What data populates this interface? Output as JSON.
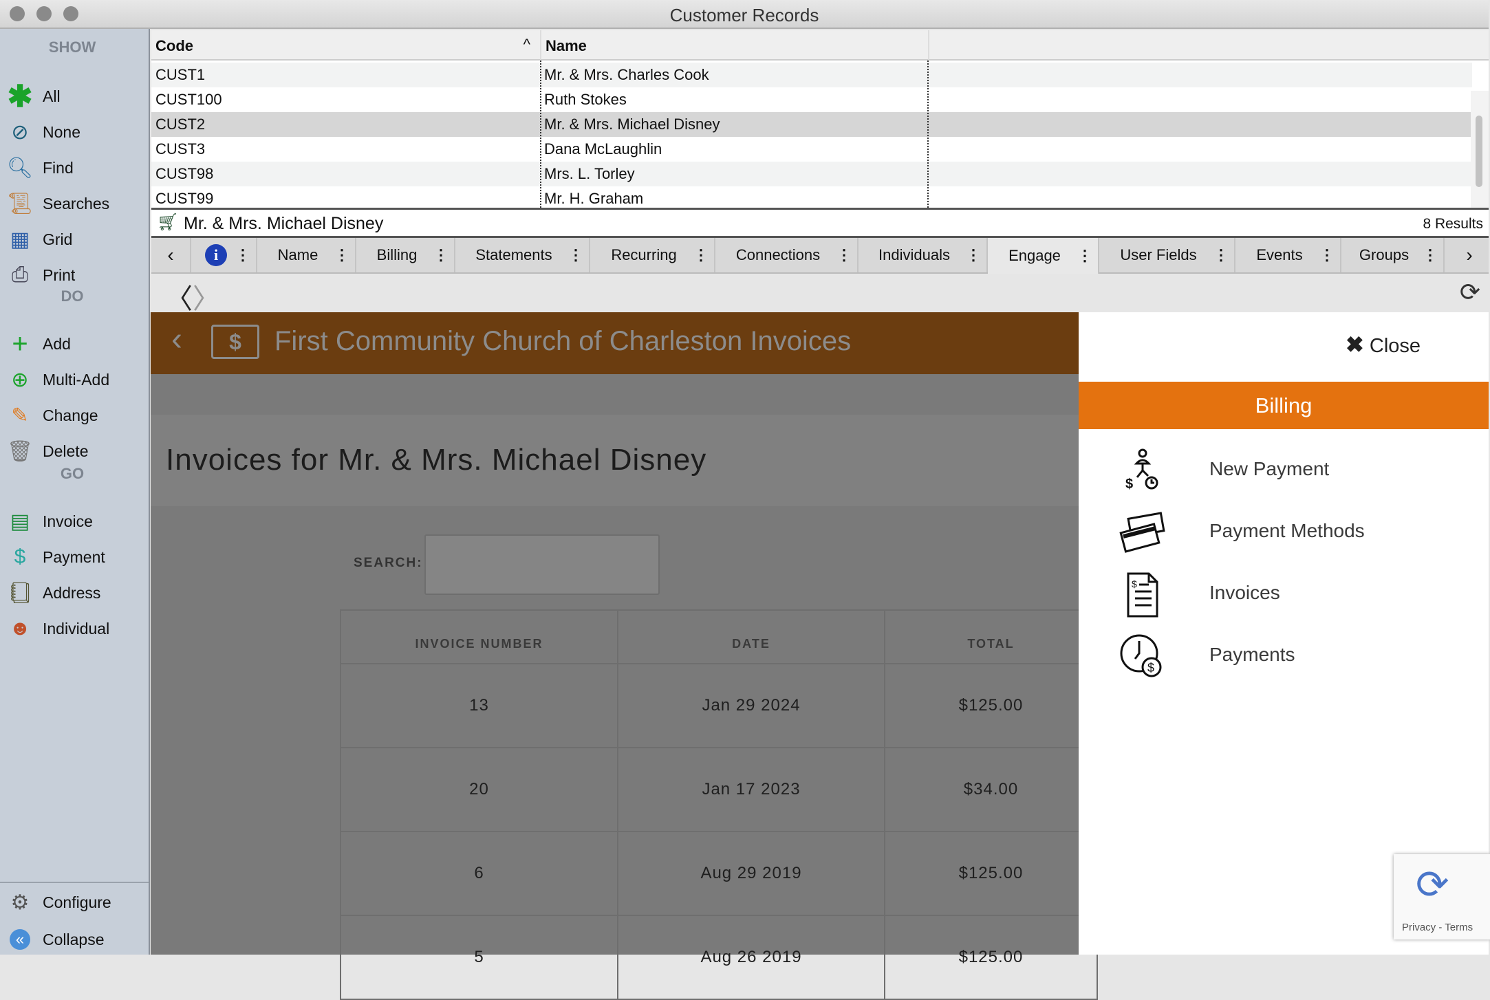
{
  "window": {
    "title": "Customer Records"
  },
  "sidebar": {
    "show_label": "SHOW",
    "do_label": "DO",
    "go_label": "GO",
    "show": [
      {
        "label": "All",
        "icon": "asterisk-icon"
      },
      {
        "label": "None",
        "icon": "none-icon"
      },
      {
        "label": "Find",
        "icon": "magnifier-icon"
      },
      {
        "label": "Searches",
        "icon": "searches-icon"
      },
      {
        "label": "Grid",
        "icon": "grid-icon"
      },
      {
        "label": "Print",
        "icon": "printer-icon"
      }
    ],
    "do": [
      {
        "label": "Add",
        "icon": "plus-icon"
      },
      {
        "label": "Multi-Add",
        "icon": "multi-add-icon"
      },
      {
        "label": "Change",
        "icon": "pencil-icon"
      },
      {
        "label": "Delete",
        "icon": "trash-icon"
      }
    ],
    "go": [
      {
        "label": "Invoice",
        "icon": "invoice-icon"
      },
      {
        "label": "Payment",
        "icon": "payment-icon"
      },
      {
        "label": "Address",
        "icon": "address-book-icon"
      },
      {
        "label": "Individual",
        "icon": "person-icon"
      }
    ],
    "bottom": [
      {
        "label": "Configure",
        "icon": "gear-icon"
      },
      {
        "label": "Collapse",
        "icon": "collapse-icon"
      }
    ]
  },
  "grid": {
    "columns": [
      "Code",
      "Name"
    ],
    "rows": [
      [
        "CUST1",
        "Mr. & Mrs. Charles Cook"
      ],
      [
        "CUST100",
        "Ruth Stokes"
      ],
      [
        "CUST2",
        "Mr. & Mrs. Michael Disney"
      ],
      [
        "CUST3",
        "Dana McLaughlin"
      ],
      [
        "CUST98",
        "Mrs. L. Torley"
      ],
      [
        "CUST99",
        "Mr. H. Graham"
      ]
    ],
    "selected_row": 2
  },
  "record": {
    "name": "Mr. & Mrs. Michael Disney",
    "results": "8 Results"
  },
  "tabs": [
    "Name",
    "Billing",
    "Statements",
    "Recurring",
    "Connections",
    "Individuals",
    "Engage",
    "User Fields",
    "Events",
    "Groups"
  ],
  "active_tab": "Engage",
  "content": {
    "header_title": "First Community Church of Charleston  Invoices",
    "heading": "Invoices for Mr. & Mrs. Michael Disney",
    "search_label": "SEARCH:",
    "search_value": "",
    "table": {
      "columns": [
        "INVOICE NUMBER",
        "DATE",
        "TOTAL"
      ],
      "rows": [
        [
          "13",
          "Jan 29 2024",
          "$125.00"
        ],
        [
          "20",
          "Jan 17 2023",
          "$34.00"
        ],
        [
          "6",
          "Aug 29 2019",
          "$125.00"
        ],
        [
          "5",
          "Aug 26 2019",
          "$125.00"
        ]
      ]
    }
  },
  "panel": {
    "close": "Close",
    "section": "Billing",
    "accent": "#e4720f",
    "items": [
      {
        "label": "New Payment",
        "icon": "new-payment-icon"
      },
      {
        "label": "Payment Methods",
        "icon": "credit-cards-icon"
      },
      {
        "label": "Invoices",
        "icon": "invoice-document-icon"
      },
      {
        "label": "Payments",
        "icon": "clock-dollar-icon"
      }
    ]
  },
  "recaptcha": {
    "text": "Privacy - Terms"
  }
}
